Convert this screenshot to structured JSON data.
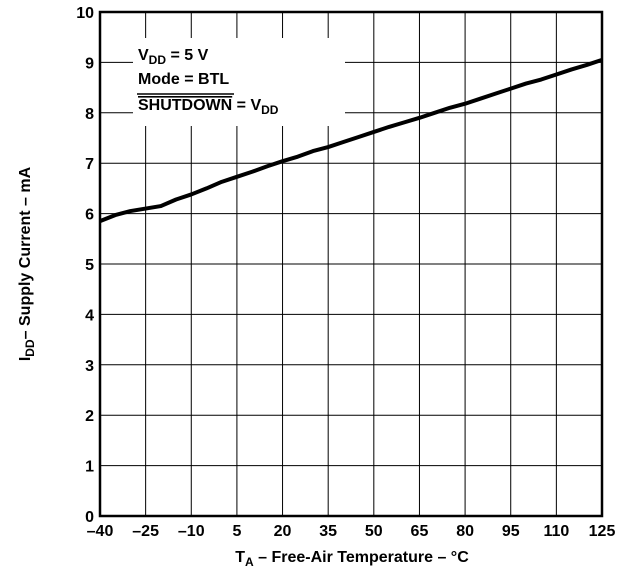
{
  "chart_data": {
    "type": "line",
    "ylabel": [
      "I",
      "DD",
      "– Supply Current – mA"
    ],
    "xlabel": [
      "T",
      "A",
      " – Free-Air Temperature – °C"
    ],
    "annotation": [
      [
        "V",
        "DD",
        " = 5 V"
      ],
      [
        "Mode = BTL"
      ],
      [
        "SHUTDOWN",
        " = V",
        "DD"
      ]
    ],
    "x": [
      -40,
      -35,
      -30,
      -25,
      -20,
      -15,
      -10,
      -5,
      0,
      5,
      10,
      15,
      20,
      25,
      30,
      35,
      40,
      45,
      50,
      55,
      60,
      65,
      70,
      75,
      80,
      85,
      90,
      95,
      100,
      105,
      110,
      115,
      120,
      125
    ],
    "series": [
      {
        "color": "#000000",
        "values": [
          5.85,
          5.97,
          6.05,
          6.1,
          6.15,
          6.28,
          6.38,
          6.5,
          6.63,
          6.73,
          6.83,
          6.94,
          7.04,
          7.13,
          7.24,
          7.32,
          7.42,
          7.52,
          7.62,
          7.72,
          7.81,
          7.9,
          8.0,
          8.1,
          8.18,
          8.28,
          8.38,
          8.48,
          8.58,
          8.66,
          8.76,
          8.86,
          8.95,
          9.05
        ]
      }
    ],
    "xlim": [
      -40,
      125
    ],
    "xticks": [
      {
        "value": -40,
        "label": "–40"
      },
      {
        "value": -25,
        "label": "–25"
      },
      {
        "value": -10,
        "label": "–10"
      },
      5,
      20,
      35,
      50,
      65,
      80,
      95,
      110,
      125
    ],
    "ylim": [
      0,
      10
    ],
    "yticks": [
      0,
      1,
      2,
      3,
      4,
      5,
      6,
      7,
      8,
      9,
      10
    ],
    "grid": true
  }
}
